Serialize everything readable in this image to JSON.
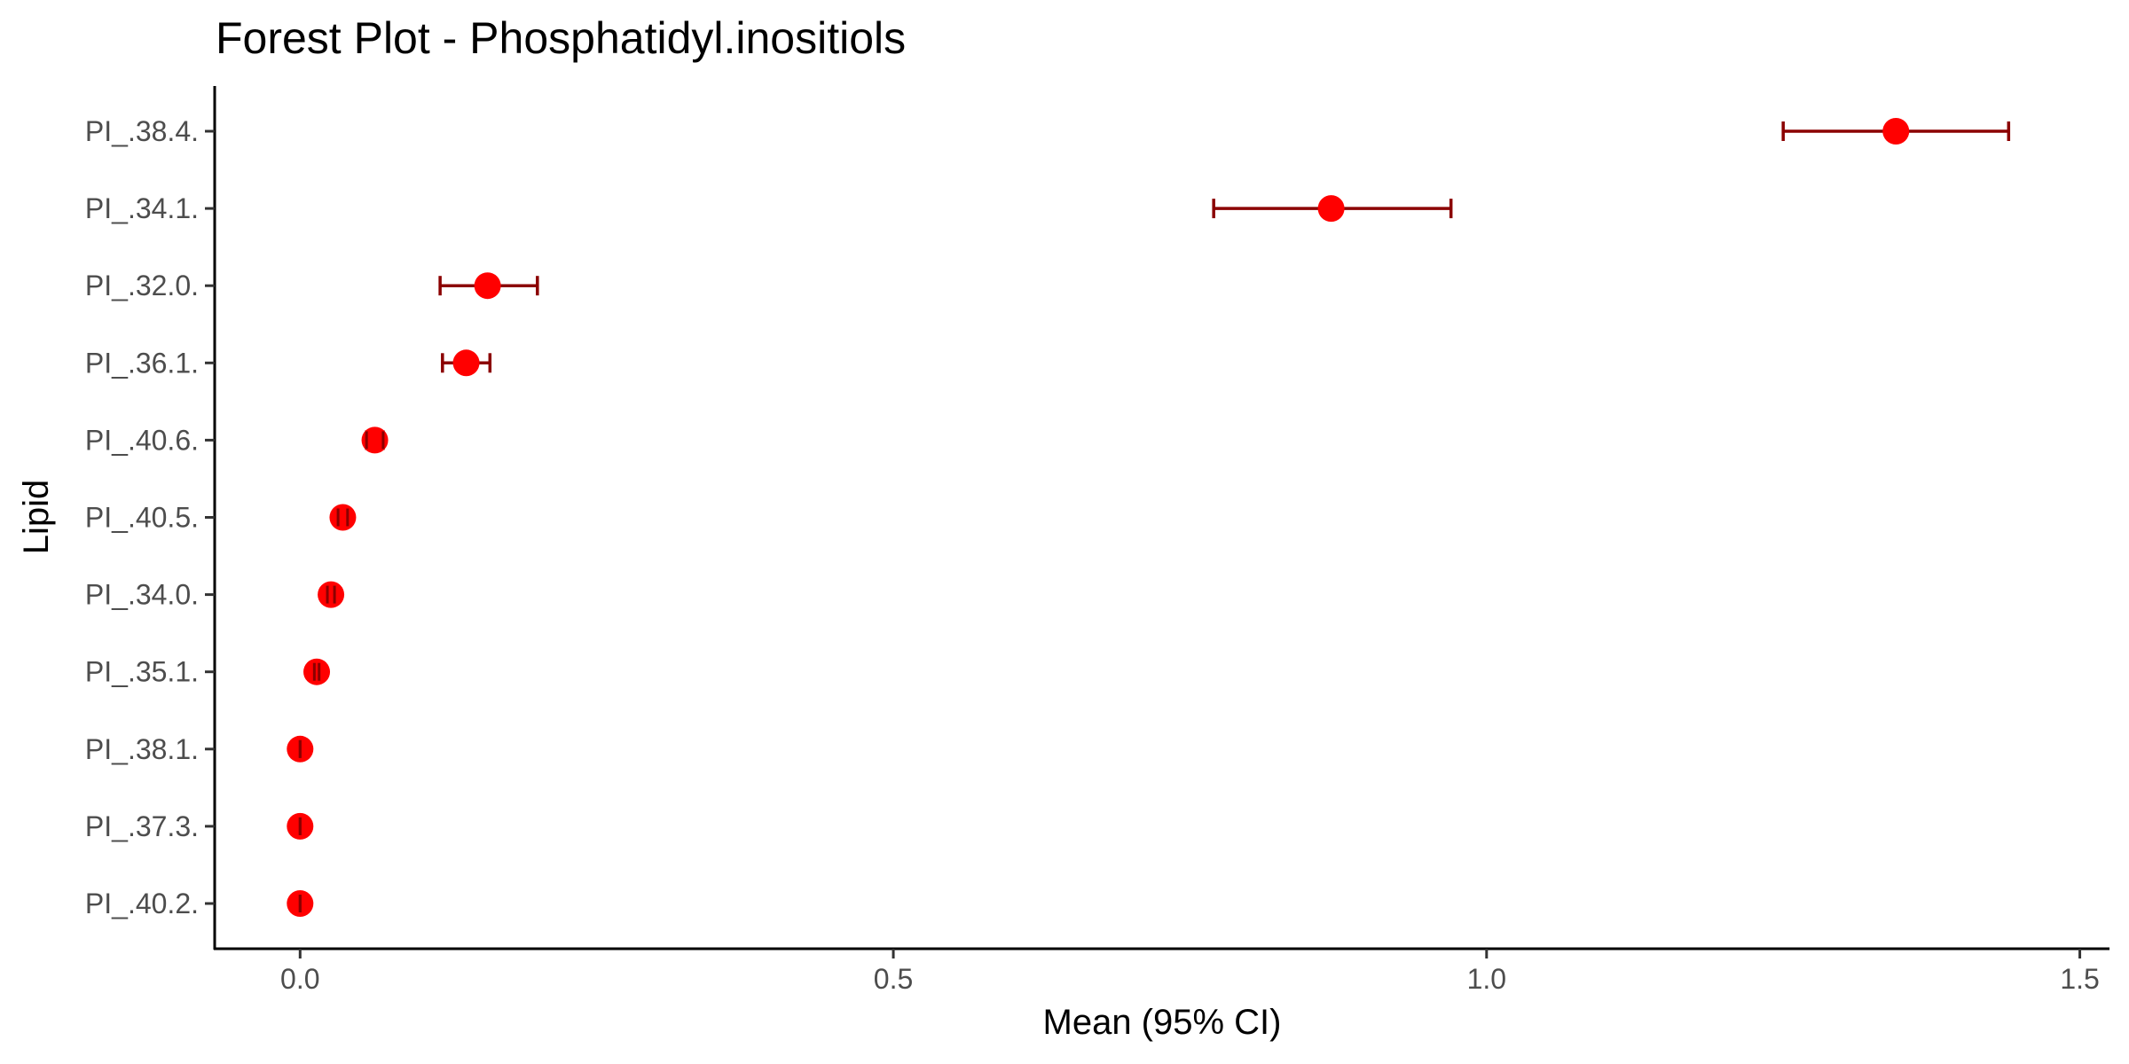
{
  "chart_data": {
    "type": "forest",
    "title": "Forest Plot - Phosphatidyl.inositiols",
    "xlabel": "Mean (95% CI)",
    "ylabel": "Lipid",
    "xlim": [
      -0.072,
      1.525
    ],
    "x_ticks": [
      0.0,
      0.5,
      1.0,
      1.5
    ],
    "x_tick_labels": [
      "0.0",
      "0.5",
      "1.0",
      "1.5"
    ],
    "grid": false,
    "legend": "none",
    "categories": [
      "PI_.38.4.",
      "PI_.34.1.",
      "PI_.32.0.",
      "PI_.36.1.",
      "PI_.40.6.",
      "PI_.40.5.",
      "PI_.34.0.",
      "PI_.35.1.",
      "PI_.38.1.",
      "PI_.37.3.",
      "PI_.40.2."
    ],
    "mean": [
      1.345,
      0.869,
      0.158,
      0.14,
      0.063,
      0.036,
      0.026,
      0.014,
      0.0,
      0.0,
      0.0
    ],
    "lower": [
      1.25,
      0.77,
      0.118,
      0.12,
      0.056,
      0.032,
      0.023,
      0.012,
      0.0,
      0.0,
      0.0
    ],
    "upper": [
      1.44,
      0.97,
      0.2,
      0.16,
      0.07,
      0.04,
      0.029,
      0.016,
      0.0,
      0.0,
      0.0
    ],
    "colors": {
      "point": "#ff0000",
      "error_bar": "#8b0000",
      "axis": "#000000",
      "tick_text": "#4d4d4d"
    }
  }
}
